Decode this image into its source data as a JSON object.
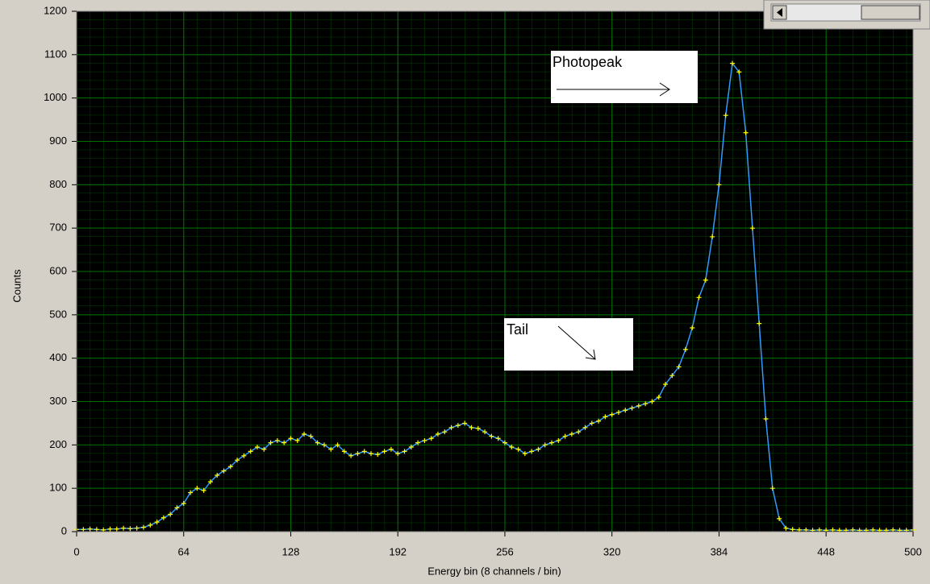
{
  "chart_data": {
    "type": "line",
    "x_label": "Energy bin (8 channels / bin)",
    "y_label": "Counts",
    "x": [
      0,
      4,
      8,
      12,
      16,
      20,
      24,
      28,
      32,
      36,
      40,
      44,
      48,
      52,
      56,
      60,
      64,
      68,
      72,
      76,
      80,
      84,
      88,
      92,
      96,
      100,
      104,
      108,
      112,
      116,
      120,
      124,
      128,
      132,
      136,
      140,
      144,
      148,
      152,
      156,
      160,
      164,
      168,
      172,
      176,
      180,
      184,
      188,
      192,
      196,
      200,
      204,
      208,
      212,
      216,
      220,
      224,
      228,
      232,
      236,
      240,
      244,
      248,
      252,
      256,
      260,
      264,
      268,
      272,
      276,
      280,
      284,
      288,
      292,
      296,
      300,
      304,
      308,
      312,
      316,
      320,
      324,
      328,
      332,
      336,
      340,
      344,
      348,
      352,
      356,
      360,
      364,
      368,
      372,
      376,
      380,
      384,
      388,
      392,
      396,
      400,
      404,
      408,
      412,
      416,
      420,
      424,
      428,
      432,
      436,
      440,
      444,
      448,
      452,
      456,
      460,
      464,
      468,
      472,
      476,
      480,
      484,
      488,
      492,
      496,
      500
    ],
    "series": [
      {
        "color": "#3399ff",
        "marker_color": "#ffff00",
        "values": [
          5,
          5,
          6,
          5,
          4,
          6,
          6,
          8,
          7,
          8,
          10,
          15,
          22,
          32,
          40,
          55,
          65,
          90,
          100,
          95,
          115,
          130,
          140,
          150,
          165,
          175,
          185,
          195,
          190,
          205,
          210,
          205,
          215,
          210,
          225,
          220,
          205,
          200,
          190,
          200,
          185,
          175,
          180,
          185,
          180,
          178,
          185,
          190,
          180,
          185,
          195,
          205,
          210,
          215,
          225,
          230,
          240,
          245,
          250,
          240,
          238,
          230,
          220,
          215,
          205,
          195,
          190,
          180,
          185,
          190,
          200,
          205,
          210,
          220,
          225,
          230,
          240,
          250,
          255,
          265,
          270,
          275,
          280,
          285,
          290,
          295,
          300,
          310,
          340,
          360,
          380,
          420,
          470,
          540,
          580,
          680,
          800,
          960,
          1080,
          1060,
          920,
          700,
          480,
          260,
          100,
          30,
          8,
          5,
          4,
          4,
          3,
          4,
          3,
          4,
          3,
          3,
          4,
          3,
          3,
          4,
          3,
          3,
          4,
          3,
          3,
          4
        ]
      }
    ],
    "xlim": [
      0,
      500
    ],
    "ylim": [
      0,
      1200
    ],
    "xticks": [
      0,
      64,
      128,
      192,
      256,
      320,
      384,
      448,
      500
    ],
    "yticks": [
      0,
      100,
      200,
      300,
      400,
      500,
      600,
      700,
      800,
      900,
      1000,
      1100,
      1200
    ],
    "grid": true,
    "annotations": [
      {
        "text": "Photopeak"
      },
      {
        "text": "Tail"
      }
    ]
  }
}
